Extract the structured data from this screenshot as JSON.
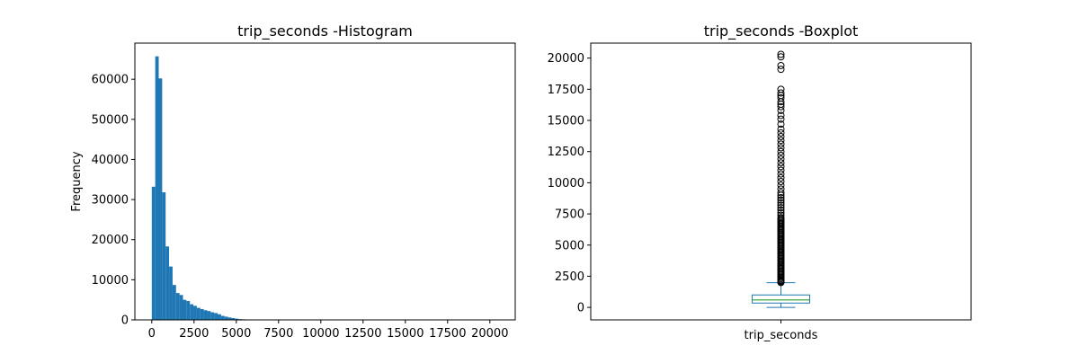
{
  "chart_data": [
    {
      "type": "bar",
      "title": "trip_seconds -Histogram",
      "xlabel": "",
      "ylabel": "Frequency",
      "xlim": [
        -1000,
        21500
      ],
      "ylim": [
        0,
        69000
      ],
      "xticks": [
        0,
        2500,
        5000,
        7500,
        10000,
        12500,
        15000,
        17500,
        20000
      ],
      "yticks": [
        0,
        10000,
        20000,
        30000,
        40000,
        50000,
        60000
      ],
      "bin_start": 0,
      "bin_width": 205,
      "values": [
        33200,
        65700,
        60200,
        31800,
        18300,
        13300,
        8700,
        6700,
        6200,
        5000,
        4700,
        3900,
        3500,
        3000,
        2700,
        2400,
        2200,
        1900,
        1700,
        1400,
        1000,
        800,
        600,
        450,
        300,
        200,
        150,
        100,
        60,
        40,
        30,
        20,
        15,
        10,
        8,
        6,
        5,
        4,
        3,
        3,
        2,
        2,
        2,
        1,
        1,
        1,
        1,
        1,
        1,
        1,
        1,
        1,
        1,
        1,
        1,
        1,
        1,
        1,
        1,
        1,
        1,
        1,
        1,
        1,
        1,
        1,
        1,
        1,
        1,
        1,
        1,
        1,
        1,
        1,
        1,
        1,
        1,
        1,
        1,
        1,
        1,
        1,
        1,
        1,
        1,
        1,
        1,
        1,
        1,
        1,
        1,
        1,
        1,
        1,
        1,
        1,
        1,
        1,
        1,
        1
      ],
      "colors": {
        "bar": "#1f77b4"
      }
    },
    {
      "type": "box",
      "title": "trip_seconds -Boxplot",
      "categories": [
        "trip_seconds"
      ],
      "ylim": [
        -1000,
        21200
      ],
      "yticks": [
        0,
        2500,
        5000,
        7500,
        10000,
        12500,
        15000,
        17500,
        20000
      ],
      "box": {
        "whisker_low": 0,
        "q1": 350,
        "median": 600,
        "q3": 1000,
        "whisker_high": 1980
      },
      "outliers": [
        2000,
        2050,
        2100,
        2150,
        2200,
        2300,
        2400,
        2500,
        2600,
        2700,
        2800,
        2900,
        3000,
        3100,
        3200,
        3300,
        3400,
        3500,
        3600,
        3700,
        3800,
        3900,
        4000,
        4100,
        4200,
        4300,
        4400,
        4500,
        4600,
        4700,
        4800,
        4900,
        5000,
        5100,
        5200,
        5300,
        5400,
        5500,
        5600,
        5700,
        5800,
        5900,
        6000,
        6100,
        6200,
        6300,
        6400,
        6500,
        6600,
        6700,
        6800,
        6900,
        7000,
        7100,
        7200,
        7400,
        7600,
        7800,
        8000,
        8200,
        8400,
        8600,
        8800,
        9000,
        9200,
        9500,
        9800,
        10100,
        10400,
        10700,
        11000,
        11300,
        11600,
        11900,
        12200,
        12500,
        12800,
        13100,
        13400,
        13700,
        14000,
        14300,
        14700,
        15100,
        15400,
        15800,
        16100,
        16300,
        16500,
        16800,
        17000,
        17200,
        17500,
        19100,
        19400,
        20100,
        20300
      ],
      "colors": {
        "box": "#1f77b4",
        "median": "#2ca02c",
        "outlier": "#000000"
      }
    }
  ]
}
